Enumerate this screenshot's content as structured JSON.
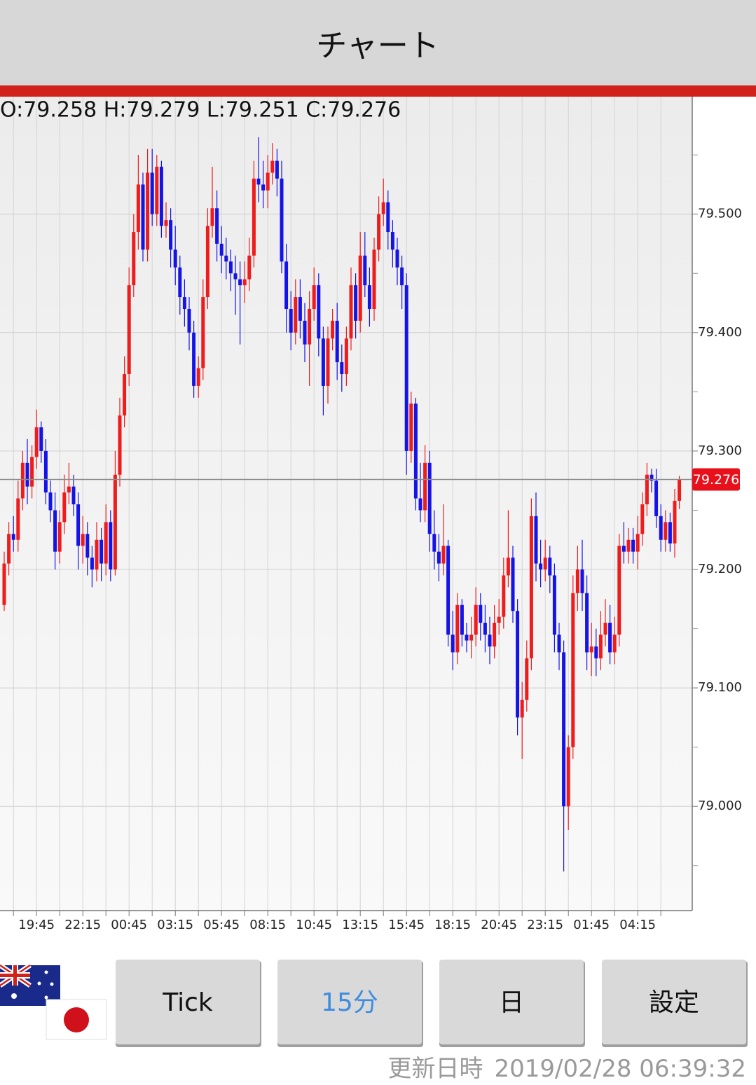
{
  "header": {
    "title": "チャート"
  },
  "chart_data": {
    "type": "candlestick",
    "ohlc_text": "O:79.258 H:79.279 L:79.251 C:79.276",
    "categories": [
      null,
      null,
      null,
      null,
      null,
      null,
      null,
      "19:45",
      null,
      null,
      null,
      null,
      null,
      null,
      null,
      null,
      null,
      "22:15",
      null,
      null,
      null,
      null,
      null,
      null,
      null,
      null,
      null,
      "00:45",
      null,
      null,
      null,
      null,
      null,
      null,
      null,
      null,
      null,
      "03:15",
      null,
      null,
      null,
      null,
      null,
      null,
      null,
      null,
      null,
      "05:45",
      null,
      null,
      null,
      null,
      null,
      null,
      null,
      null,
      null,
      "08:15",
      null,
      null,
      null,
      null,
      null,
      null,
      null,
      null,
      null,
      "10:45",
      null,
      null,
      null,
      null,
      null,
      null,
      null,
      null,
      null,
      "13:15",
      null,
      null,
      null,
      null,
      null,
      null,
      null,
      null,
      null,
      "15:45",
      null,
      null,
      null,
      null,
      null,
      null,
      null,
      null,
      null,
      "18:15",
      null,
      null,
      null,
      null,
      null,
      null,
      null,
      null,
      null,
      "20:45",
      null,
      null,
      null,
      null,
      null,
      null,
      null,
      null,
      null,
      "23:15",
      null,
      null,
      null,
      null,
      null,
      null,
      null,
      null,
      null,
      "01:45",
      null,
      null,
      null,
      null,
      null,
      null,
      null,
      null,
      null,
      "04:15",
      null,
      null,
      null,
      null,
      null,
      null,
      null,
      null,
      null
    ],
    "open": [
      79.17,
      79.205,
      79.23,
      79.225,
      79.26,
      79.29,
      79.27,
      79.295,
      79.32,
      79.3,
      79.265,
      79.25,
      79.215,
      79.24,
      79.265,
      79.27,
      79.255,
      79.22,
      79.23,
      79.21,
      79.2,
      79.225,
      79.205,
      79.24,
      79.2,
      79.28,
      79.33,
      79.365,
      79.44,
      79.485,
      79.525,
      79.47,
      79.535,
      79.5,
      79.54,
      79.49,
      79.495,
      79.47,
      79.455,
      79.43,
      79.42,
      79.4,
      79.355,
      79.37,
      79.43,
      79.49,
      79.505,
      79.475,
      79.465,
      79.46,
      79.45,
      79.445,
      79.44,
      79.445,
      79.465,
      79.53,
      79.525,
      79.52,
      79.535,
      79.545,
      79.53,
      79.46,
      79.42,
      79.4,
      79.43,
      79.41,
      79.39,
      79.42,
      79.44,
      79.395,
      79.355,
      79.395,
      79.41,
      79.375,
      79.365,
      79.395,
      79.44,
      79.41,
      79.465,
      79.44,
      79.42,
      79.47,
      79.5,
      79.51,
      79.485,
      79.47,
      79.455,
      79.44,
      79.3,
      79.34,
      79.26,
      79.25,
      79.29,
      79.23,
      79.215,
      79.205,
      79.22,
      79.145,
      79.13,
      79.17,
      79.145,
      79.14,
      79.145,
      79.17,
      79.155,
      79.145,
      79.135,
      79.155,
      79.16,
      79.195,
      79.21,
      79.165,
      79.075,
      79.09,
      79.125,
      79.245,
      79.205,
      79.2,
      79.21,
      79.195,
      79.145,
      79.13,
      79,
      79.05,
      79.18,
      79.2,
      79.18,
      79.13,
      79.135,
      79.125,
      79.145,
      79.155,
      79.13,
      79.145,
      79.22,
      79.215,
      79.225,
      79.215,
      79.23,
      79.255,
      79.28,
      79.275,
      79.245,
      79.225,
      79.24,
      79.222,
      79.258
    ],
    "high": [
      79.215,
      79.24,
      79.245,
      79.275,
      79.3,
      79.31,
      79.305,
      79.335,
      79.325,
      79.31,
      79.275,
      79.265,
      79.25,
      79.28,
      79.29,
      79.28,
      79.265,
      79.245,
      79.24,
      79.22,
      79.24,
      79.235,
      79.255,
      79.25,
      79.3,
      79.345,
      79.38,
      79.455,
      79.5,
      79.55,
      79.535,
      79.555,
      79.555,
      79.55,
      79.545,
      79.51,
      79.505,
      79.49,
      79.465,
      79.445,
      79.43,
      79.41,
      79.38,
      79.445,
      79.505,
      79.54,
      79.52,
      79.49,
      79.48,
      79.47,
      79.465,
      79.46,
      79.46,
      79.48,
      79.545,
      79.565,
      79.545,
      79.55,
      79.56,
      79.555,
      79.545,
      79.475,
      79.435,
      79.445,
      79.445,
      79.425,
      79.435,
      79.455,
      79.45,
      79.405,
      79.405,
      79.42,
      79.425,
      79.39,
      79.405,
      79.455,
      79.45,
      79.485,
      79.485,
      79.455,
      79.48,
      79.515,
      79.53,
      79.52,
      79.495,
      79.48,
      79.465,
      79.45,
      79.35,
      79.345,
      79.29,
      79.305,
      79.3,
      79.25,
      79.23,
      79.255,
      79.225,
      79.165,
      79.18,
      79.175,
      79.155,
      79.16,
      79.185,
      79.18,
      79.17,
      79.16,
      79.17,
      79.175,
      79.21,
      79.25,
      79.22,
      79.175,
      79.105,
      79.14,
      79.26,
      79.265,
      79.225,
      79.225,
      79.22,
      79.205,
      79.155,
      79.14,
      79.06,
      79.195,
      79.22,
      79.225,
      79.195,
      79.155,
      79.15,
      79.165,
      79.175,
      79.17,
      79.16,
      79.23,
      79.24,
      79.235,
      79.235,
      79.245,
      79.265,
      79.29,
      79.285,
      79.285,
      79.255,
      79.25,
      79.248,
      79.268,
      79.279
    ],
    "low": [
      79.165,
      79.195,
      79.215,
      79.215,
      79.25,
      79.255,
      79.26,
      79.285,
      79.29,
      79.255,
      79.24,
      79.2,
      79.205,
      79.23,
      79.255,
      79.245,
      79.2,
      79.205,
      79.195,
      79.185,
      79.19,
      79.19,
      79.195,
      79.19,
      79.195,
      79.27,
      79.32,
      79.355,
      79.43,
      79.47,
      79.46,
      79.46,
      79.49,
      79.49,
      79.48,
      79.48,
      79.455,
      79.44,
      79.415,
      79.405,
      79.385,
      79.345,
      79.345,
      79.36,
      79.42,
      79.48,
      79.46,
      79.45,
      79.445,
      79.435,
      79.415,
      79.39,
      79.425,
      79.435,
      79.455,
      79.51,
      79.505,
      79.505,
      79.525,
      79.515,
      79.45,
      79.4,
      79.385,
      79.39,
      79.395,
      79.375,
      79.355,
      79.41,
      79.38,
      79.33,
      79.34,
      79.385,
      79.36,
      79.35,
      79.355,
      79.385,
      79.395,
      79.4,
      79.43,
      79.405,
      79.41,
      79.46,
      79.49,
      79.47,
      79.455,
      79.44,
      79.42,
      79.28,
      79.29,
      79.25,
      79.24,
      79.24,
      79.215,
      79.2,
      79.19,
      79.195,
      79.135,
      79.115,
      79.12,
      79.135,
      79.13,
      79.125,
      79.135,
      79.14,
      79.13,
      79.12,
      79.125,
      79.145,
      79.15,
      79.185,
      79.155,
      79.06,
      79.04,
      79.08,
      79.115,
      79.19,
      79.185,
      79.19,
      79.18,
      79.13,
      79.115,
      78.945,
      78.98,
      79.04,
      79.165,
      79.165,
      79.115,
      79.11,
      79.11,
      79.115,
      79.135,
      79.12,
      79.12,
      79.135,
      79.205,
      79.205,
      79.205,
      79.2,
      79.22,
      79.245,
      79.265,
      79.235,
      79.215,
      79.215,
      79.215,
      79.21,
      79.251
    ],
    "close": [
      79.205,
      79.23,
      79.225,
      79.26,
      79.29,
      79.27,
      79.295,
      79.32,
      79.3,
      79.265,
      79.25,
      79.215,
      79.24,
      79.265,
      79.27,
      79.255,
      79.22,
      79.23,
      79.21,
      79.2,
      79.225,
      79.205,
      79.24,
      79.2,
      79.28,
      79.33,
      79.365,
      79.44,
      79.485,
      79.525,
      79.47,
      79.535,
      79.5,
      79.54,
      79.49,
      79.495,
      79.47,
      79.455,
      79.43,
      79.42,
      79.4,
      79.355,
      79.37,
      79.43,
      79.49,
      79.505,
      79.475,
      79.465,
      79.46,
      79.45,
      79.445,
      79.44,
      79.445,
      79.465,
      79.53,
      79.525,
      79.52,
      79.535,
      79.545,
      79.53,
      79.46,
      79.42,
      79.4,
      79.43,
      79.41,
      79.39,
      79.42,
      79.44,
      79.395,
      79.355,
      79.395,
      79.41,
      79.375,
      79.365,
      79.395,
      79.44,
      79.41,
      79.465,
      79.44,
      79.42,
      79.47,
      79.5,
      79.51,
      79.485,
      79.47,
      79.455,
      79.44,
      79.3,
      79.34,
      79.26,
      79.25,
      79.29,
      79.23,
      79.215,
      79.205,
      79.22,
      79.145,
      79.13,
      79.17,
      79.145,
      79.14,
      79.145,
      79.17,
      79.155,
      79.145,
      79.135,
      79.155,
      79.16,
      79.195,
      79.21,
      79.165,
      79.075,
      79.09,
      79.125,
      79.245,
      79.205,
      79.2,
      79.21,
      79.195,
      79.145,
      79.13,
      79,
      79.05,
      79.18,
      79.2,
      79.18,
      79.13,
      79.135,
      79.125,
      79.145,
      79.155,
      79.13,
      79.145,
      79.22,
      79.215,
      79.225,
      79.215,
      79.23,
      79.255,
      79.28,
      79.275,
      79.245,
      79.225,
      79.24,
      79.222,
      79.258,
      79.276
    ],
    "up_color": "#ee1c1c",
    "down_color": "#1414e6",
    "ylim": [
      78.912,
      79.598
    ],
    "yticks": [
      {
        "value": 79.0,
        "label": "79.000"
      },
      {
        "value": 79.1,
        "label": "79.100"
      },
      {
        "value": 79.2,
        "label": "79.200"
      },
      {
        "value": 79.3,
        "label": "79.300"
      },
      {
        "value": 79.4,
        "label": "79.400"
      },
      {
        "value": 79.5,
        "label": "79.500"
      }
    ],
    "minor_yticks": [
      78.95,
      79.05,
      79.15,
      79.25,
      79.35,
      79.45,
      79.55
    ],
    "current_price": {
      "value": 79.276,
      "label": "79.276"
    },
    "grid": true
  },
  "buttons": [
    "Tick",
    "15分",
    "日",
    "設定"
  ],
  "active_button": 1,
  "footer": {
    "label": "更新日時",
    "timestamp": "2019/02/28 06:39:32"
  }
}
